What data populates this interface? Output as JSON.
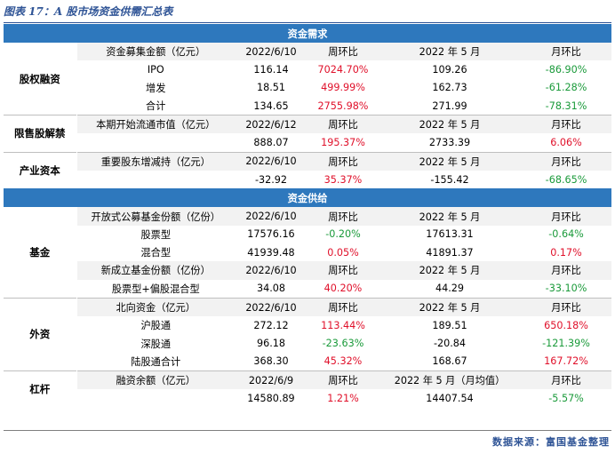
{
  "caption": "图表 17：A 股市场资金供需汇总表",
  "source": "数据来源：富国基金整理",
  "sections": [
    {
      "title": "资金需求",
      "groups": [
        {
          "category": "股权融资",
          "rows": [
            {
              "type": "hdr",
              "cells": [
                "资金募集金额（亿元）",
                "2022/6/10",
                "周环比",
                "2022 年 5 月",
                "月环比"
              ]
            },
            {
              "type": "data",
              "cells": [
                "IPO",
                "116.14",
                "7024.70%",
                "109.26",
                "-86.90%"
              ],
              "colors": [
                "",
                "",
                "red",
                "",
                "green"
              ]
            },
            {
              "type": "data",
              "cells": [
                "增发",
                "18.51",
                "499.99%",
                "162.73",
                "-61.28%"
              ],
              "colors": [
                "",
                "",
                "red",
                "",
                "green"
              ]
            },
            {
              "type": "data",
              "cells": [
                "合计",
                "134.65",
                "2755.98%",
                "271.99",
                "-78.31%"
              ],
              "colors": [
                "",
                "",
                "red",
                "",
                "green"
              ]
            }
          ]
        },
        {
          "category": "限售股解禁",
          "rows": [
            {
              "type": "hdr",
              "cells": [
                "本期开始流通市值（亿元）",
                "2022/6/12",
                "周环比",
                "2022 年 5 月",
                "月环比"
              ]
            },
            {
              "type": "data",
              "cells": [
                "",
                "888.07",
                "195.37%",
                "2733.39",
                "6.06%"
              ],
              "colors": [
                "",
                "",
                "red",
                "",
                "red"
              ]
            }
          ]
        },
        {
          "category": "产业资本",
          "rows": [
            {
              "type": "hdr",
              "cells": [
                "重要股东增减持（亿元）",
                "2022/6/10",
                "周环比",
                "2022 年 5 月",
                "月环比"
              ]
            },
            {
              "type": "data",
              "cells": [
                "",
                "-32.92",
                "35.37%",
                "-155.42",
                "-68.65%"
              ],
              "colors": [
                "",
                "",
                "red",
                "",
                "green"
              ]
            }
          ]
        }
      ]
    },
    {
      "title": "资金供给",
      "groups": [
        {
          "category": "基金",
          "rows": [
            {
              "type": "hdr",
              "cells": [
                "开放式公募基金份额（亿份）",
                "2022/6/10",
                "周环比",
                "2022 年 5 月",
                "月环比"
              ]
            },
            {
              "type": "data",
              "cells": [
                "股票型",
                "17576.16",
                "-0.20%",
                "17613.31",
                "-0.64%"
              ],
              "colors": [
                "",
                "",
                "green",
                "",
                "green"
              ]
            },
            {
              "type": "data",
              "cells": [
                "混合型",
                "41939.48",
                "0.05%",
                "41891.37",
                "0.17%"
              ],
              "colors": [
                "",
                "",
                "red",
                "",
                "red"
              ]
            },
            {
              "type": "hdr",
              "cells": [
                "新成立基金份额（亿份）",
                "2022/6/10",
                "周环比",
                "2022 年 5 月",
                "月环比"
              ]
            },
            {
              "type": "data",
              "cells": [
                "股票型+偏股混合型",
                "34.08",
                "40.20%",
                "44.29",
                "-33.10%"
              ],
              "colors": [
                "",
                "",
                "red",
                "",
                "green"
              ]
            }
          ]
        },
        {
          "category": "外资",
          "rows": [
            {
              "type": "hdr",
              "cells": [
                "北向资金（亿元）",
                "2022/6/10",
                "周环比",
                "2022 年 5 月",
                "月环比"
              ]
            },
            {
              "type": "data",
              "cells": [
                "沪股通",
                "272.12",
                "113.44%",
                "189.51",
                "650.18%"
              ],
              "colors": [
                "",
                "",
                "red",
                "",
                "red"
              ]
            },
            {
              "type": "data",
              "cells": [
                "深股通",
                "96.18",
                "-23.63%",
                "-20.84",
                "-121.39%"
              ],
              "colors": [
                "",
                "",
                "green",
                "",
                "green"
              ]
            },
            {
              "type": "data",
              "cells": [
                "陆股通合计",
                "368.30",
                "45.32%",
                "168.67",
                "167.72%"
              ],
              "colors": [
                "",
                "",
                "red",
                "",
                "red"
              ]
            }
          ]
        },
        {
          "category": "杠杆",
          "rows": [
            {
              "type": "hdr",
              "cells": [
                "融资余额（亿元）",
                "2022/6/9",
                "周环比",
                "2022 年 5 月（月均值）",
                "月环比"
              ]
            },
            {
              "type": "data",
              "cells": [
                "",
                "14580.89",
                "1.21%",
                "14407.54",
                "-5.57%"
              ],
              "colors": [
                "",
                "",
                "red",
                "",
                "green"
              ]
            }
          ]
        }
      ]
    }
  ]
}
